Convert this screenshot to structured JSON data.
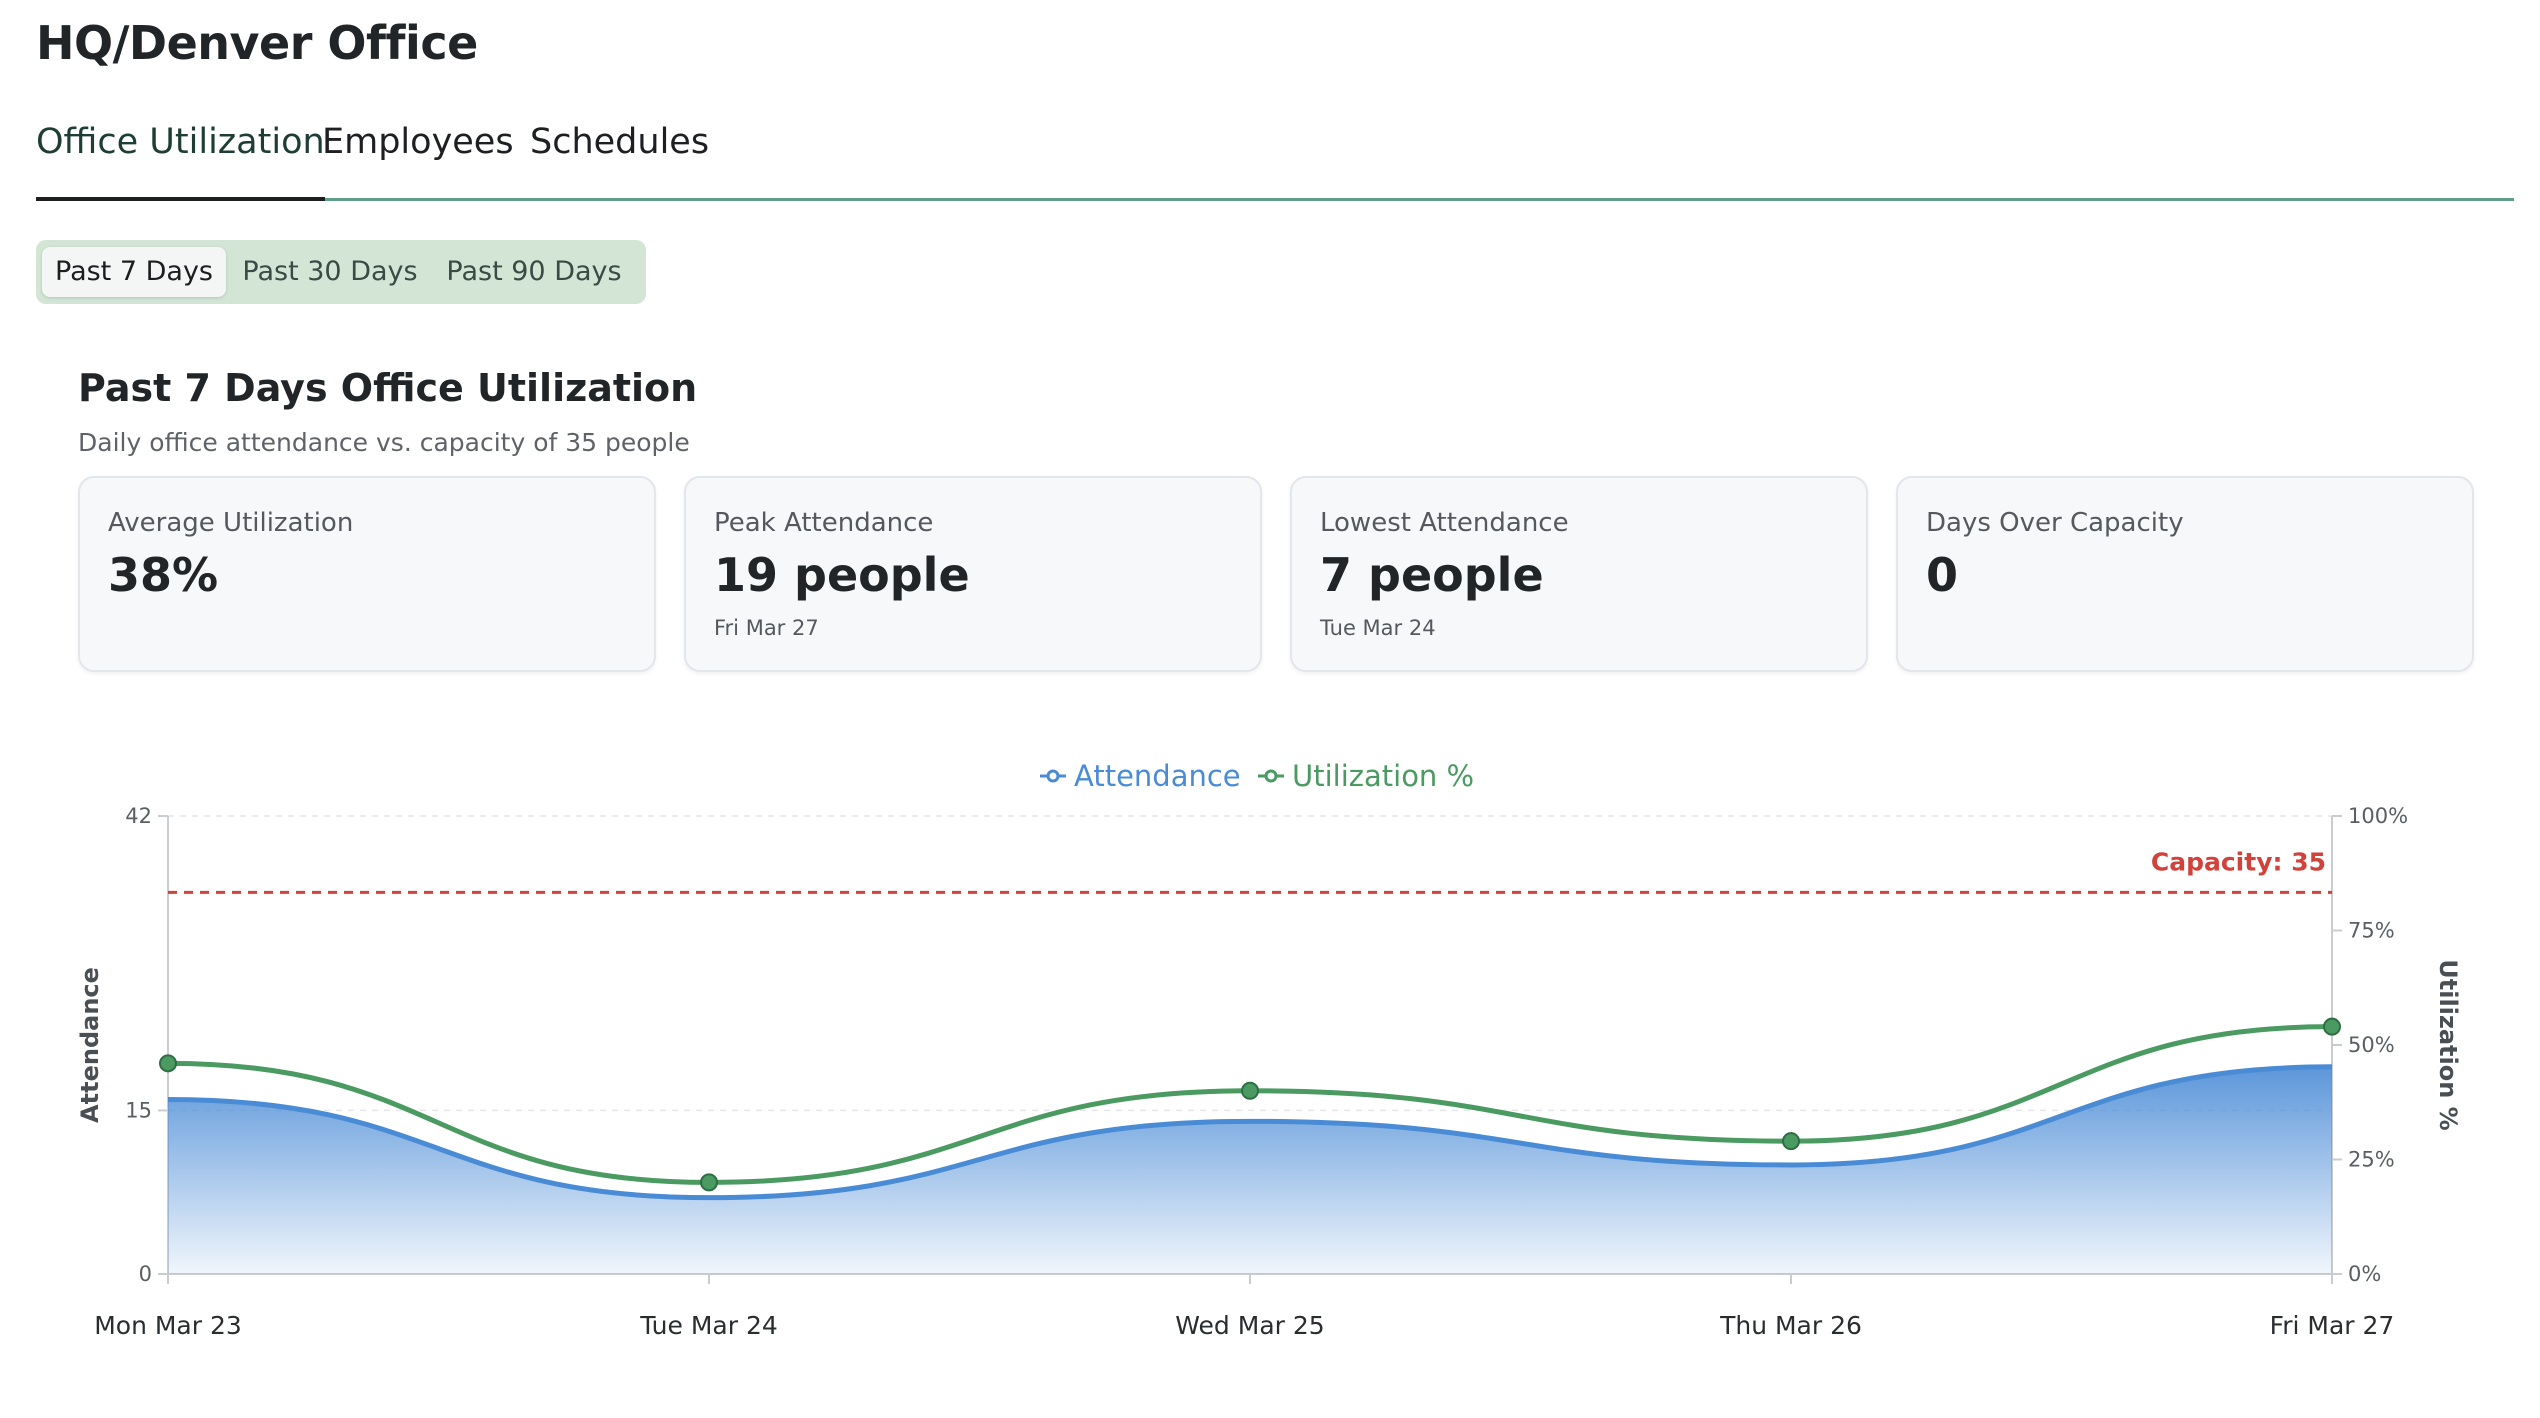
{
  "page": {
    "title": "HQ/Denver Office"
  },
  "tabs": [
    {
      "label": "Office Utilization",
      "active": true
    },
    {
      "label": "Employees",
      "active": false
    },
    {
      "label": "Schedules",
      "active": false
    }
  ],
  "ranges": [
    {
      "label": "Past 7 Days",
      "active": true
    },
    {
      "label": "Past 30 Days",
      "active": false
    },
    {
      "label": "Past 90 Days",
      "active": false
    }
  ],
  "section": {
    "title": "Past 7 Days Office Utilization",
    "subtitle": "Daily office attendance vs. capacity of 35 people"
  },
  "cards": [
    {
      "label": "Average Utilization",
      "value": "38%",
      "note": ""
    },
    {
      "label": "Peak Attendance",
      "value": "19 people",
      "note": "Fri Mar 27"
    },
    {
      "label": "Lowest Attendance",
      "value": "7 people",
      "note": "Tue Mar 24"
    },
    {
      "label": "Days Over Capacity",
      "value": "0",
      "note": ""
    }
  ],
  "colors": {
    "attendance": "#4a8bd6",
    "utilization": "#4a9a62",
    "capacity": "#d0423a"
  },
  "chart_data": {
    "type": "line",
    "categories": [
      "Mon Mar 23",
      "Tue Mar 24",
      "Wed Mar 25",
      "Thu Mar 26",
      "Fri Mar 27"
    ],
    "series": [
      {
        "name": "Attendance",
        "axis": "left",
        "style": "area",
        "values": [
          16,
          7,
          14,
          10,
          19
        ]
      },
      {
        "name": "Utilization %",
        "axis": "right",
        "style": "line",
        "values": [
          46,
          20,
          40,
          29,
          54
        ]
      }
    ],
    "legend": [
      "Attendance",
      "Utilization %"
    ],
    "legend_position": "top-center",
    "capacity": {
      "value": 35,
      "label": "Capacity: 35"
    },
    "y_left": {
      "label": "Attendance",
      "ticks": [
        "0",
        "15",
        "42"
      ],
      "tick_values": [
        0,
        15,
        42
      ],
      "min": 0,
      "max": 42
    },
    "y_right": {
      "label": "Utilization %",
      "ticks": [
        "0%",
        "25%",
        "50%",
        "75%",
        "100%"
      ],
      "tick_values": [
        0,
        25,
        50,
        75,
        100
      ],
      "min": 0,
      "max": 100
    },
    "grid": true
  }
}
